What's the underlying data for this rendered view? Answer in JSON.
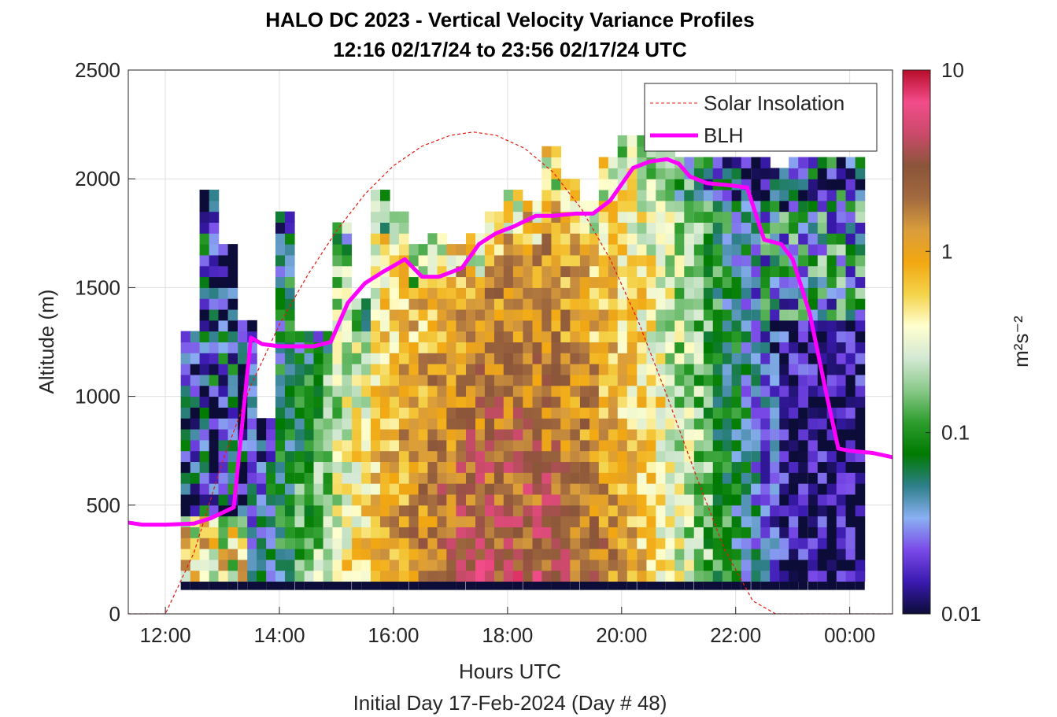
{
  "figure": {
    "title_line1": "HALO DC 2023 - Vertical Velocity Variance Profiles",
    "title_line2": "12:16 02/17/24 to 23:56 02/17/24  UTC"
  },
  "chart_data": {
    "type": "heatmap",
    "title": "HALO DC 2023 - Vertical Velocity Variance Profiles",
    "subtitle": "12:16 02/17/24 to 23:56 02/17/24  UTC",
    "xlabel": "Hours UTC",
    "xlabel2": "Initial Day 17-Feb-2024 (Day # 48)",
    "ylabel": "Altitude (m)",
    "xlim": [
      11.35,
      24.75
    ],
    "ylim": [
      0,
      2500
    ],
    "x_ticks": [
      12,
      14,
      16,
      18,
      20,
      22,
      24
    ],
    "x_tick_labels": [
      "12:00",
      "14:00",
      "16:00",
      "18:00",
      "20:00",
      "22:00",
      "00:00"
    ],
    "y_ticks": [
      0,
      500,
      1000,
      1500,
      2000,
      2500
    ],
    "y_tick_labels": [
      "0",
      "500",
      "1000",
      "1500",
      "2000",
      "2500"
    ],
    "grid": true,
    "legend_position": "top-right",
    "colorbar": {
      "label": "m²s⁻²",
      "scale": "log",
      "range": [
        0.01,
        10
      ],
      "ticks": [
        0.01,
        0.1,
        1,
        10
      ],
      "tick_labels": [
        "0.01",
        "0.1",
        "1",
        "10"
      ],
      "colors": [
        "#0c0c38",
        "#3a1ab0",
        "#7a4ae8",
        "#8ab0f2",
        "#2e7f8a",
        "#007a00",
        "#2e9e2e",
        "#8ac98a",
        "#d4e9d4",
        "#ffffcf",
        "#f4d34a",
        "#f2a711",
        "#d99d3c",
        "#a26a3f",
        "#8a5539",
        "#ca4a6a",
        "#f24c8a",
        "#b80d2a"
      ]
    },
    "heatmap": {
      "time_start": 12.27,
      "time_step": 0.1667,
      "gate_bottom": 150,
      "gate_size": 50,
      "description_values_are_log10_variance": true,
      "columns": [
        {
          "t": 12.27,
          "top": 1300
        },
        {
          "t": 12.6,
          "top": 1950
        },
        {
          "t": 12.93,
          "top": 1700
        },
        {
          "t": 13.27,
          "top": 1350
        },
        {
          "t": 13.6,
          "top": 900
        },
        {
          "t": 13.93,
          "top": 1850
        },
        {
          "t": 14.27,
          "top": 1300
        },
        {
          "t": 14.6,
          "top": 1300
        },
        {
          "t": 14.93,
          "top": 1800
        },
        {
          "t": 15.27,
          "top": 1450
        },
        {
          "t": 15.6,
          "top": 1950
        },
        {
          "t": 15.93,
          "top": 1850
        },
        {
          "t": 16.27,
          "top": 1700
        },
        {
          "t": 16.6,
          "top": 1750
        },
        {
          "t": 16.93,
          "top": 1700
        },
        {
          "t": 17.27,
          "top": 1750
        },
        {
          "t": 17.6,
          "top": 1850
        },
        {
          "t": 17.93,
          "top": 1950
        },
        {
          "t": 18.27,
          "top": 1900
        },
        {
          "t": 18.6,
          "top": 2150
        },
        {
          "t": 18.93,
          "top": 2000
        },
        {
          "t": 19.27,
          "top": 1900
        },
        {
          "t": 19.6,
          "top": 2100
        },
        {
          "t": 19.93,
          "top": 2200
        },
        {
          "t": 20.27,
          "top": 2200
        },
        {
          "t": 20.6,
          "top": 2150
        },
        {
          "t": 20.93,
          "top": 2100
        },
        {
          "t": 21.27,
          "top": 2100
        },
        {
          "t": 21.6,
          "top": 2100
        },
        {
          "t": 21.93,
          "top": 2100
        },
        {
          "t": 22.27,
          "top": 2100
        },
        {
          "t": 22.6,
          "top": 2050
        },
        {
          "t": 22.93,
          "top": 2100
        },
        {
          "t": 23.27,
          "top": 2100
        },
        {
          "t": 23.6,
          "top": 2100
        },
        {
          "t": 23.93,
          "top": 2100
        }
      ]
    },
    "series": [
      {
        "name": "Solar Insolation",
        "style": "dashed",
        "color": "#e8190e",
        "x": [
          11.35,
          12.0,
          12.5,
          13.0,
          13.5,
          14.0,
          14.5,
          15.0,
          15.5,
          16.0,
          16.5,
          17.0,
          17.4,
          17.8,
          18.3,
          18.8,
          19.3,
          19.8,
          20.3,
          20.8,
          21.3,
          21.8,
          22.3,
          22.7,
          23.0,
          24.75
        ],
        "y": [
          0,
          0,
          280,
          700,
          1050,
          1330,
          1560,
          1760,
          1930,
          2060,
          2150,
          2200,
          2215,
          2200,
          2140,
          2030,
          1860,
          1630,
          1340,
          1000,
          640,
          300,
          60,
          0,
          0,
          0
        ]
      },
      {
        "name": "BLH",
        "style": "solid",
        "color": "#ff00ff",
        "x": [
          11.35,
          11.6,
          12.0,
          12.5,
          12.8,
          13.2,
          13.5,
          13.7,
          14.0,
          14.3,
          14.6,
          14.9,
          15.2,
          15.5,
          15.8,
          16.2,
          16.5,
          16.8,
          17.2,
          17.5,
          17.8,
          18.1,
          18.5,
          18.8,
          19.2,
          19.5,
          19.8,
          20.2,
          20.5,
          20.8,
          21.0,
          21.2,
          21.5,
          21.9,
          22.2,
          22.5,
          22.8,
          23.0,
          23.3,
          23.6,
          23.8,
          24.0,
          24.4,
          24.75
        ],
        "y": [
          420,
          410,
          410,
          415,
          440,
          490,
          1270,
          1240,
          1230,
          1230,
          1230,
          1250,
          1430,
          1520,
          1570,
          1630,
          1550,
          1550,
          1590,
          1700,
          1750,
          1780,
          1830,
          1830,
          1840,
          1840,
          1900,
          2050,
          2080,
          2090,
          2070,
          2010,
          1980,
          1970,
          1960,
          1720,
          1700,
          1630,
          1380,
          1000,
          760,
          750,
          740,
          720
        ]
      }
    ]
  }
}
